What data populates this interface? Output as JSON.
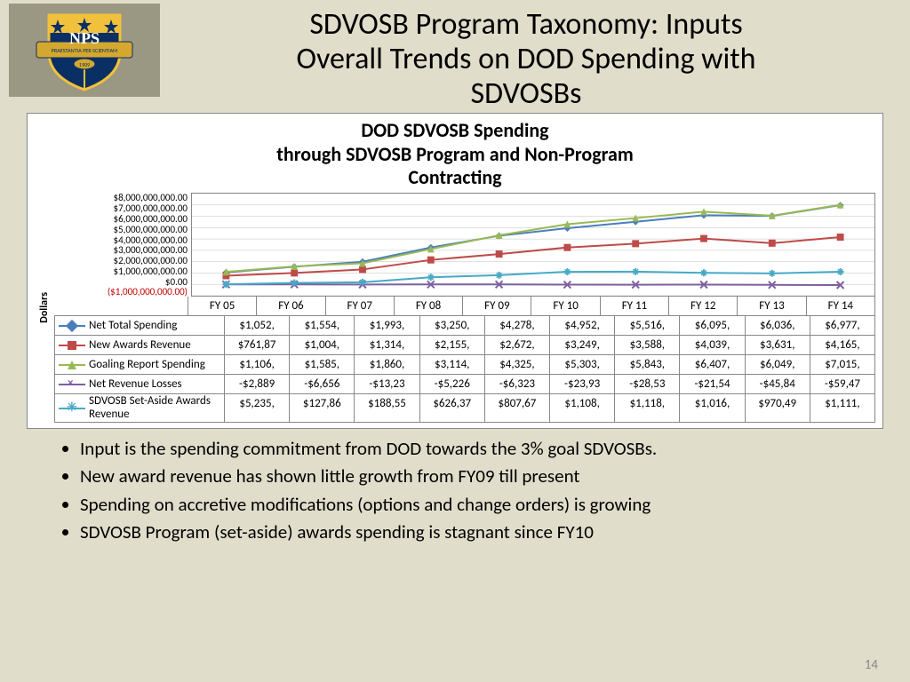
{
  "slide": {
    "title_line1": "SDVOSB Program Taxonomy: Inputs",
    "title_line2": "Overall Trends on DOD Spending with",
    "title_line3": "SDVOSBs",
    "page_number": "14"
  },
  "logo": {
    "text": "NPS",
    "banner": "PRAESTANTIA PER SCIENTIAM",
    "year": "1909",
    "colors": {
      "blue": "#0a2f64",
      "gold": "#f2c13c",
      "banner": "#d4a82e",
      "outline": "#0a2f64"
    }
  },
  "chart": {
    "type": "line",
    "title_line1": "DOD SDVOSB Spending",
    "title_line2": "through SDVOSB Program and Non-Program",
    "title_line3": "Contracting",
    "ylabel": "Dollars",
    "background_color": "#ffffff",
    "grid_color": "#bfbfbf",
    "categories": [
      "FY 05",
      "FY 06",
      "FY 07",
      "FY 08",
      "FY 09",
      "FY 10",
      "FY 11",
      "FY 12",
      "FY 13",
      "FY 14"
    ],
    "ymin": -1000000000,
    "ymax": 8000000000,
    "yticks": [
      "$8,000,000,000.00",
      "$7,000,000,000.00",
      "$6,000,000,000.00",
      "$5,000,000,000.00",
      "$4,000,000,000.00",
      "$3,000,000,000.00",
      "$2,000,000,000.00",
      "$1,000,000,000.00",
      "$0.00",
      "($1,000,000,000.00)"
    ],
    "series": [
      {
        "name": "Net Total Spending",
        "color": "#4a7ebb",
        "marker": "diamond",
        "values": [
          1052,
          1554,
          1993,
          3250,
          4278,
          4952,
          5516,
          6095,
          6036,
          6977
        ],
        "display": [
          "$1,052,",
          "$1,554,",
          "$1,993,",
          "$3,250,",
          "$4,278,",
          "$4,952,",
          "$5,516,",
          "$6,095,",
          "$6,036,",
          "$6,977,"
        ]
      },
      {
        "name": "New Awards Revenue",
        "color": "#be4b48",
        "marker": "square",
        "values": [
          761.87,
          1004,
          1314,
          2155,
          2672,
          3249,
          3588,
          4039,
          3631,
          4165
        ],
        "display": [
          "$761,87",
          "$1,004,",
          "$1,314,",
          "$2,155,",
          "$2,672,",
          "$3,249,",
          "$3,588,",
          "$4,039,",
          "$3,631,",
          "$4,165,"
        ]
      },
      {
        "name": "Goaling Report Spending",
        "color": "#98b954",
        "marker": "triangle",
        "values": [
          1106,
          1585,
          1860,
          3114,
          4325,
          5303,
          5843,
          6407,
          6049,
          7015
        ],
        "display": [
          "$1,106,",
          "$1,585,",
          "$1,860,",
          "$3,114,",
          "$4,325,",
          "$5,303,",
          "$5,843,",
          "$6,407,",
          "$6,049,",
          "$7,015,"
        ]
      },
      {
        "name": "Net Revenue Losses",
        "color": "#7d60a0",
        "marker": "cross",
        "values": [
          -2.889,
          -6.656,
          -13.23,
          -5.226,
          -6.323,
          -23.93,
          -28.53,
          -21.54,
          -45.84,
          -59.47
        ],
        "display": [
          "-$2,889",
          "-$6,656",
          "-$13,23",
          "-$5,226",
          "-$6,323",
          "-$23,93",
          "-$28,53",
          "-$21,54",
          "-$45,84",
          "-$59,47"
        ]
      },
      {
        "name": "SDVOSB Set-Aside Awards Revenue",
        "color": "#46aac5",
        "marker": "star",
        "tall": true,
        "values": [
          5.235,
          127.86,
          188.55,
          626.37,
          807.67,
          1108,
          1118,
          1016,
          970.49,
          1111
        ],
        "display": [
          "$5,235,",
          "$127,86",
          "$188,55",
          "$626,37",
          "$807,67",
          "$1,108,",
          "$1,118,",
          "$1,016,",
          "$970,49",
          "$1,111,"
        ]
      }
    ]
  },
  "bullets": [
    "Input is the spending commitment from DOD towards the 3% goal SDVOSBs.",
    "New award revenue has shown little growth from FY09 till present",
    "Spending on accretive modifications (options and change orders) is growing",
    "SDVOSB Program (set-aside) awards spending is stagnant since FY10"
  ]
}
